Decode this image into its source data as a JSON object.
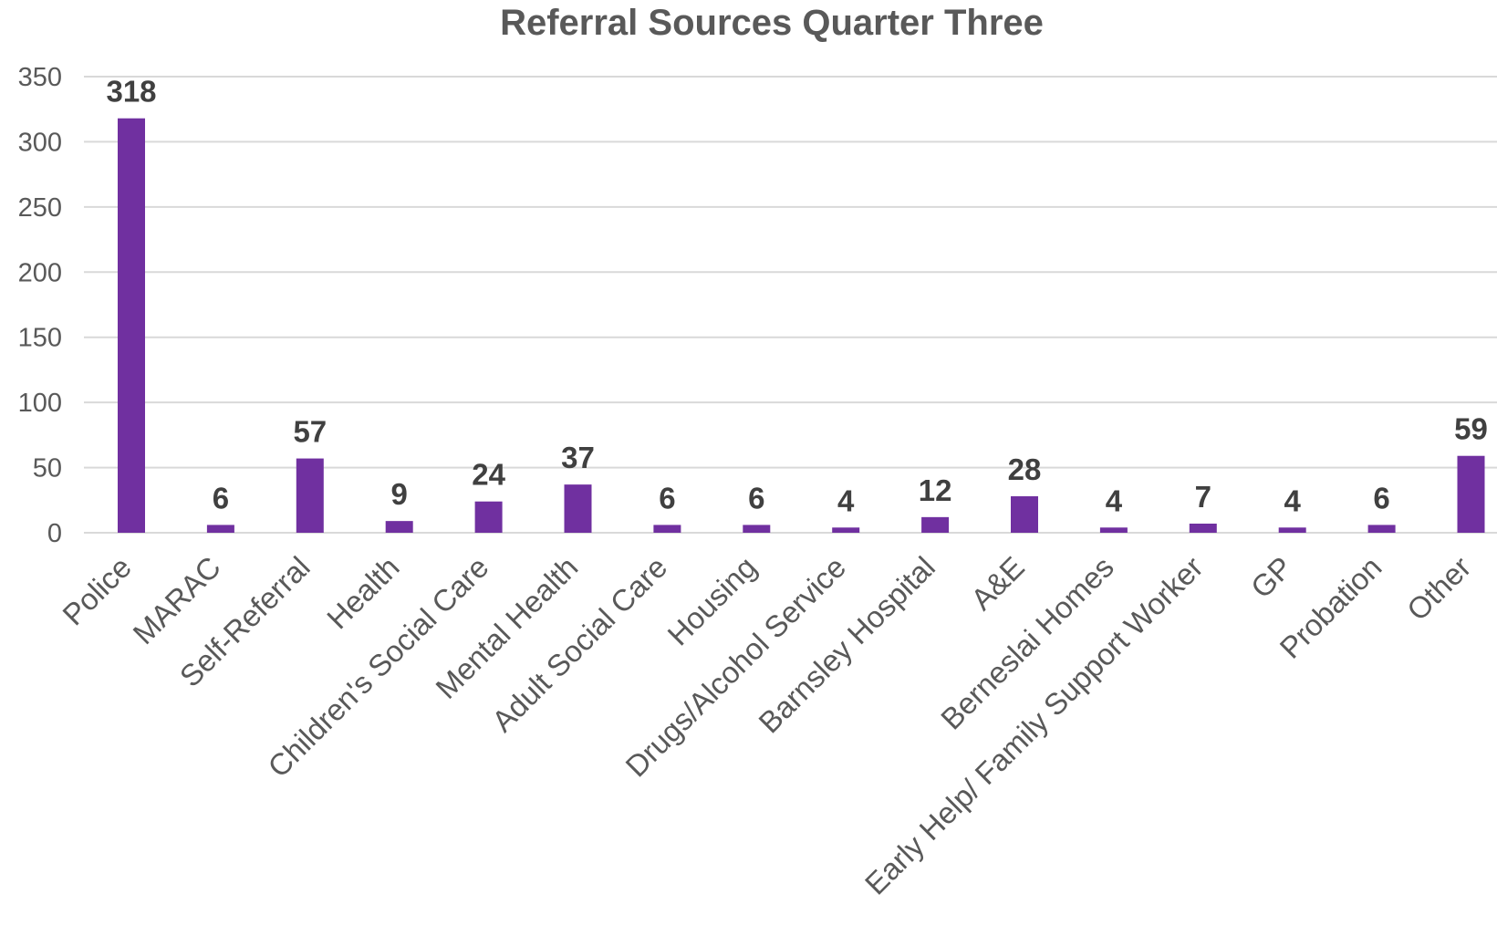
{
  "colors": {
    "bar": "#7030a0",
    "title": "#595959",
    "tick_text": "#595959",
    "data_label": "#404040",
    "gridline": "#d9d9d9"
  },
  "chart_data": {
    "type": "bar",
    "title": "Referral Sources Quarter Three",
    "xlabel": "",
    "ylabel": "",
    "ylim": [
      0,
      350
    ],
    "yticks": [
      0,
      50,
      100,
      150,
      200,
      250,
      300,
      350
    ],
    "grid": true,
    "legend": "none",
    "categories": [
      "Police",
      "MARAC",
      "Self-Referral",
      "Health",
      "Children's Social Care",
      "Mental Health",
      "Adult Social Care",
      "Housing",
      "Drugs/Alcohol Service",
      "Barnsley Hospital",
      "A&E",
      "Berneslai Homes",
      "Early Help/ Family Support Worker",
      "GP",
      "Probation",
      "Other"
    ],
    "values": [
      318,
      6,
      57,
      9,
      24,
      37,
      6,
      6,
      4,
      12,
      28,
      4,
      7,
      4,
      6,
      59
    ]
  }
}
